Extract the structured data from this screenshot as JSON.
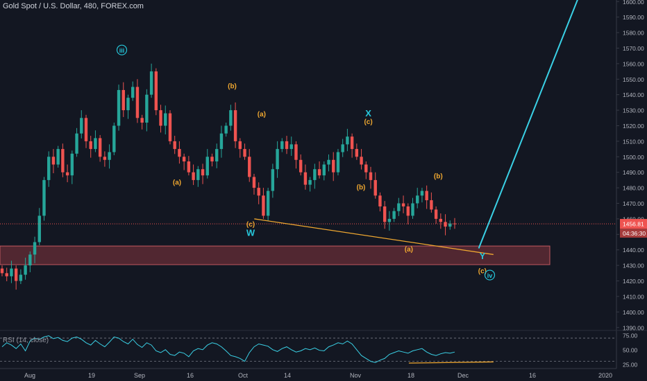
{
  "header": {
    "title": "Gold Spot / U.S. Dollar, 480, FOREX.com"
  },
  "colors": {
    "background": "#131722",
    "up": "#26a69a",
    "down": "#ef5350",
    "axis_text": "#b2b5be",
    "wave_label": "#f0a830",
    "wave_label_teal": "#26c6da",
    "projection": "#3ad1e6",
    "support_zone": "#5c2a34",
    "support_zone_border": "#e0646b",
    "price_badge": "#ef5350",
    "rsi_line": "#3ad1e6"
  },
  "chart_data": [
    {
      "type": "candlestick",
      "title": "Gold Spot / U.S. Dollar, 480, FOREX.com",
      "x_tick_labels": [
        "Aug",
        "19",
        "Sep",
        "16",
        "Oct",
        "14",
        "Nov",
        "18",
        "Dec",
        "16",
        "2020"
      ],
      "y_tick_labels": [
        "1390.00",
        "1400.00",
        "1410.00",
        "1420.00",
        "1430.00",
        "1440.00",
        "1450.00",
        "1460.00",
        "1470.00",
        "1480.00",
        "1490.00",
        "1500.00",
        "1510.00",
        "1520.00",
        "1530.00",
        "1540.00",
        "1550.00",
        "1560.00",
        "1570.00",
        "1580.00",
        "1590.00",
        "1600.00"
      ],
      "ylim": [
        1389,
        1601
      ],
      "price_close_series": [
        1425,
        1423,
        1428,
        1420,
        1424,
        1430,
        1437,
        1445,
        1462,
        1485,
        1500,
        1495,
        1505,
        1490,
        1488,
        1502,
        1515,
        1525,
        1510,
        1505,
        1512,
        1500,
        1498,
        1503,
        1520,
        1543,
        1530,
        1538,
        1545,
        1525,
        1522,
        1540,
        1555,
        1530,
        1520,
        1528,
        1510,
        1505,
        1500,
        1497,
        1490,
        1485,
        1492,
        1488,
        1500,
        1497,
        1505,
        1515,
        1520,
        1530,
        1510,
        1505,
        1500,
        1487,
        1480,
        1475,
        1462,
        1478,
        1492,
        1505,
        1510,
        1505,
        1508,
        1498,
        1490,
        1482,
        1485,
        1492,
        1488,
        1495,
        1498,
        1490,
        1503,
        1508,
        1513,
        1505,
        1500,
        1495,
        1490,
        1485,
        1475,
        1468,
        1458,
        1460,
        1465,
        1470,
        1468,
        1462,
        1470,
        1475,
        1478,
        1472,
        1466,
        1460,
        1458,
        1455,
        1457,
        1456.81
      ],
      "current_price_label": "1456.81",
      "countdown_label": "04:36:30",
      "support_zone": {
        "low": 1430.5,
        "high": 1442.5
      },
      "trendline": [
        {
          "date": "Oct 1",
          "price": 1460
        },
        {
          "date": "Dec 5",
          "price": 1437
        }
      ],
      "projection_line": [
        {
          "date": "Dec 1",
          "price": 1441
        },
        {
          "date": "Dec 28",
          "price": 1602
        }
      ],
      "wave_labels": [
        {
          "text": "iii",
          "circled": true,
          "date": "Aug 26",
          "price": 1567,
          "color": "teal"
        },
        {
          "text": "(a)",
          "date": "Sep 10",
          "price": 1482,
          "color": "orange"
        },
        {
          "text": "(b)",
          "date": "Sep 25",
          "price": 1544,
          "color": "orange"
        },
        {
          "text": "(c)",
          "date": "Sep 30",
          "price": 1455,
          "color": "orange"
        },
        {
          "text": "W",
          "date": "Sep 30",
          "price": 1449,
          "color": "teal"
        },
        {
          "text": "(a)",
          "date": "Oct 3",
          "price": 1526,
          "color": "orange"
        },
        {
          "text": "(b)",
          "date": "Oct 30",
          "price": 1479,
          "color": "orange"
        },
        {
          "text": "X",
          "date": "Nov 1",
          "price": 1526,
          "color": "teal"
        },
        {
          "text": "(c)",
          "date": "Nov 1",
          "price": 1521,
          "color": "orange"
        },
        {
          "text": "(b)",
          "date": "Nov 20",
          "price": 1486,
          "color": "orange"
        },
        {
          "text": "(a)",
          "date": "Nov 12",
          "price": 1439,
          "color": "orange"
        },
        {
          "text": "Y",
          "date": "Dec 2",
          "price": 1434,
          "color": "teal"
        },
        {
          "text": "(c)",
          "date": "Dec 2",
          "price": 1425,
          "color": "orange"
        },
        {
          "text": "iv",
          "circled": true,
          "date": "Dec 4",
          "price": 1422,
          "color": "teal"
        }
      ]
    },
    {
      "type": "line",
      "title": "RSI (14, close)",
      "y_tick_labels": [
        "75.00",
        "50.00",
        "25.00"
      ],
      "ylim": [
        20,
        82
      ],
      "levels": [
        70,
        30
      ],
      "values": [
        55,
        62,
        58,
        52,
        60,
        48,
        65,
        70,
        68,
        72,
        74,
        69,
        71,
        66,
        64,
        70,
        72,
        68,
        62,
        58,
        66,
        60,
        55,
        63,
        72,
        70,
        64,
        60,
        68,
        59,
        54,
        62,
        58,
        48,
        45,
        50,
        42,
        40,
        46,
        44,
        38,
        48,
        52,
        50,
        58,
        62,
        60,
        55,
        48,
        40,
        38,
        35,
        30,
        45,
        55,
        60,
        58,
        56,
        50,
        47,
        52,
        55,
        50,
        46,
        48,
        52,
        50,
        53,
        49,
        48,
        55,
        58,
        62,
        60,
        65,
        60,
        50,
        40,
        35,
        30,
        28,
        32,
        35,
        42,
        45,
        48,
        46,
        44,
        48,
        50,
        52,
        46,
        42,
        40,
        43,
        45,
        44,
        46
      ],
      "divergence_line": [
        {
          "date": "Nov 12",
          "value": 27
        },
        {
          "date": "Dec 5",
          "value": 29
        }
      ]
    }
  ]
}
